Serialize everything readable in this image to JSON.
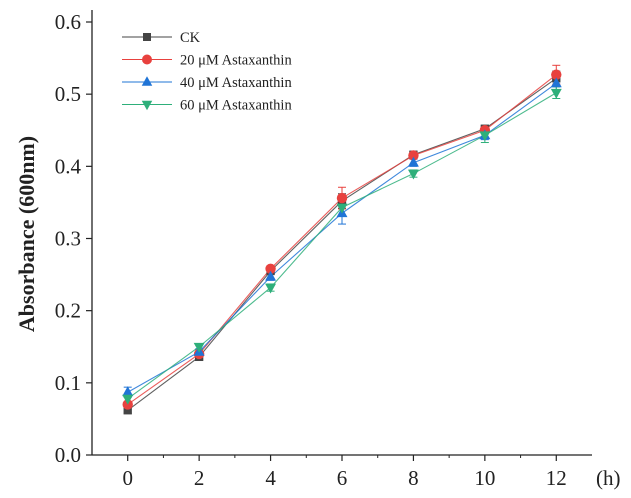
{
  "chart_data": {
    "type": "line",
    "title": "",
    "xlabel": "(h)",
    "ylabel": "Absorbance (600nm)",
    "x": [
      0,
      2,
      4,
      6,
      8,
      10,
      12
    ],
    "x_tick_labels": [
      "0",
      "2",
      "4",
      "6",
      "8",
      "10",
      "12"
    ],
    "xlim": [
      -1,
      13
    ],
    "ylim": [
      0.0,
      0.6
    ],
    "y_ticks": [
      0.0,
      0.1,
      0.2,
      0.3,
      0.4,
      0.5,
      0.6
    ],
    "y_tick_labels": [
      "0.0",
      "0.1",
      "0.2",
      "0.3",
      "0.4",
      "0.5",
      "0.6"
    ],
    "grid": false,
    "legend_position": "top-left",
    "series": [
      {
        "name": "CK",
        "color": "#444444",
        "marker": "square",
        "values": [
          0.062,
          0.136,
          0.255,
          0.352,
          0.416,
          0.452,
          0.522
        ],
        "errors": [
          0.004,
          0.003,
          0.004,
          0.01,
          0.005,
          0.005,
          0.01
        ]
      },
      {
        "name": "20 μM Astaxanthin",
        "color": "#e8413e",
        "marker": "circle",
        "values": [
          0.07,
          0.14,
          0.258,
          0.356,
          0.415,
          0.45,
          0.527
        ],
        "errors": [
          0.004,
          0.003,
          0.004,
          0.015,
          0.005,
          0.005,
          0.013
        ]
      },
      {
        "name": "40 μM Astaxanthin",
        "color": "#1f74d6",
        "marker": "triangle-up",
        "values": [
          0.087,
          0.143,
          0.247,
          0.335,
          0.405,
          0.443,
          0.515
        ],
        "errors": [
          0.007,
          0.004,
          0.005,
          0.015,
          0.005,
          0.006,
          0.01
        ]
      },
      {
        "name": "60 μM Astaxanthin",
        "color": "#2eaf7a",
        "marker": "triangle-down",
        "values": [
          0.078,
          0.15,
          0.232,
          0.343,
          0.39,
          0.443,
          0.502
        ],
        "errors": [
          0.005,
          0.004,
          0.005,
          0.012,
          0.005,
          0.01,
          0.008
        ]
      }
    ]
  }
}
